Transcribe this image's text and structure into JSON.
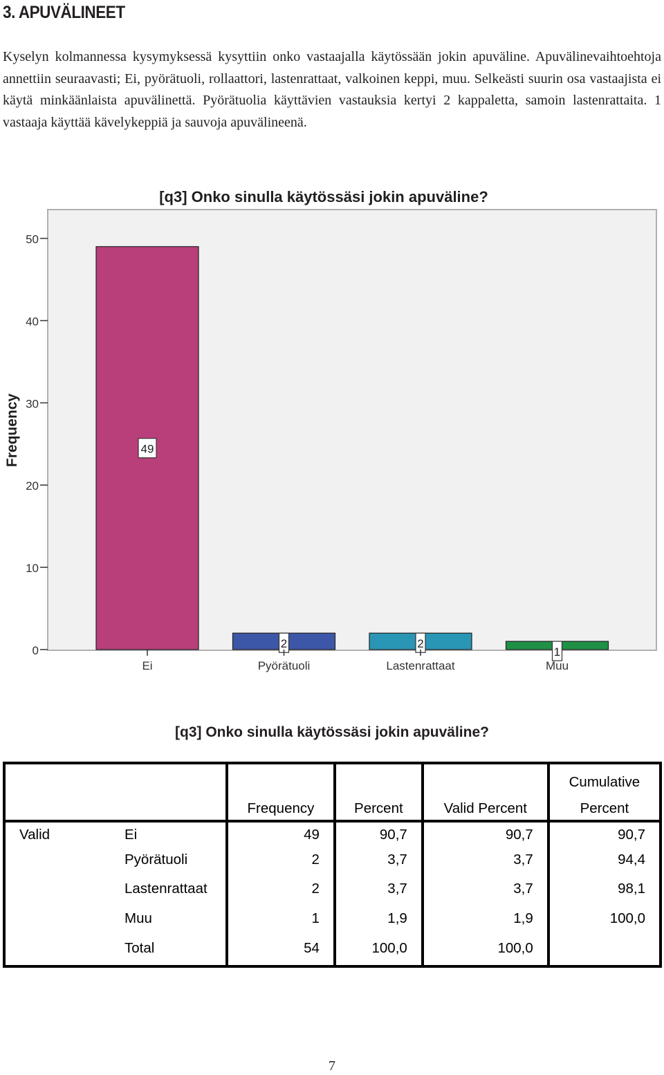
{
  "section": {
    "heading": "3. APUVÄLINEET",
    "intro": "Kyselyn kolmannessa kysymyksessä kysyttiin onko vastaajalla käytössään jokin apuväline. Apuvälinevaihtoehtoja annettiin seuraavasti; Ei, pyörätuoli, rollaattori, lastenrattaat, valkoinen keppi, muu. Selkeästi suurin osa vastaajista ei käytä minkäänlaista apuvälinettä. Pyörätuolia käyttävien vastauksia kertyi 2 kappaletta, samoin lastenrattaita. 1 vastaaja käyttää kävelykeppiä ja sauvoja apuvälineenä."
  },
  "chart_data": {
    "type": "bar",
    "title": "[q3] Onko sinulla käytössäsi jokin apuväline?",
    "xlabel": "",
    "ylabel": "Frequency",
    "categories": [
      "Ei",
      "Pyörätuoli",
      "Lastenrattaat",
      "Muu"
    ],
    "values": [
      49,
      2,
      2,
      1
    ],
    "data_labels": [
      "49",
      "2",
      "2",
      "1"
    ],
    "colors": [
      "#b93f7b",
      "#3d57a8",
      "#2a96b5",
      "#1f9147"
    ],
    "yticks": [
      0,
      10,
      20,
      30,
      40,
      50
    ],
    "ylim": [
      0,
      53.5
    ],
    "grid": false,
    "legend": "none",
    "plot_background": "#f1f1f1"
  },
  "table": {
    "title": "[q3] Onko sinulla käytössäsi jokin apuväline?",
    "headers": {
      "frequency": "Frequency",
      "percent": "Percent",
      "valid_percent": "Valid Percent",
      "cumulative_top": "Cumulative",
      "cumulative_bottom": "Percent"
    },
    "group_label": "Valid",
    "rows": [
      {
        "category": "Ei",
        "frequency": "49",
        "percent": "90,7",
        "valid_percent": "90,7",
        "cumulative": "90,7"
      },
      {
        "category": "Pyörätuoli",
        "frequency": "2",
        "percent": "3,7",
        "valid_percent": "3,7",
        "cumulative": "94,4"
      },
      {
        "category": "Lastenrattaat",
        "frequency": "2",
        "percent": "3,7",
        "valid_percent": "3,7",
        "cumulative": "98,1"
      },
      {
        "category": "Muu",
        "frequency": "1",
        "percent": "1,9",
        "valid_percent": "1,9",
        "cumulative": "100,0"
      },
      {
        "category": "Total",
        "frequency": "54",
        "percent": "100,0",
        "valid_percent": "100,0",
        "cumulative": ""
      }
    ]
  },
  "page_number": "7"
}
